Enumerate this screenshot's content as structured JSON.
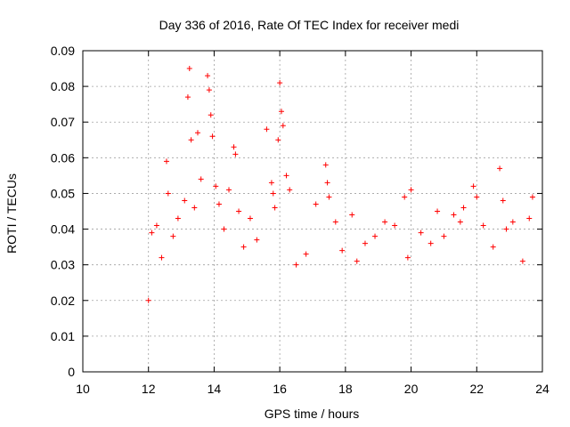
{
  "chart_data": {
    "type": "scatter",
    "title": "Day 336 of 2016, Rate Of TEC Index for receiver medi",
    "xlabel": "GPS time / hours",
    "ylabel": "ROTI / TECUs",
    "xlim": [
      10,
      24
    ],
    "ylim": [
      0,
      0.09
    ],
    "xticks": [
      "10",
      "12",
      "14",
      "16",
      "18",
      "20",
      "22",
      "24"
    ],
    "yticks": [
      "0",
      "0.01",
      "0.02",
      "0.03",
      "0.04",
      "0.05",
      "0.06",
      "0.07",
      "0.08",
      "0.09"
    ],
    "grid": true,
    "marker": "plus",
    "color": "#ff0000",
    "series": [
      {
        "name": "ROTI",
        "x": [
          12.0,
          12.1,
          12.25,
          12.4,
          12.55,
          12.6,
          12.75,
          12.9,
          13.1,
          13.2,
          13.25,
          13.3,
          13.4,
          13.5,
          13.6,
          13.8,
          13.85,
          13.9,
          13.95,
          14.05,
          14.15,
          14.3,
          14.45,
          14.6,
          14.65,
          14.75,
          14.9,
          15.1,
          15.3,
          15.6,
          15.75,
          15.8,
          15.85,
          15.95,
          16.0,
          16.05,
          16.1,
          16.2,
          16.3,
          16.5,
          16.8,
          17.1,
          17.4,
          17.45,
          17.5,
          17.7,
          17.9,
          18.2,
          18.35,
          18.6,
          18.9,
          19.2,
          19.5,
          19.8,
          19.9,
          20.0,
          20.3,
          20.6,
          20.8,
          21.0,
          21.3,
          21.5,
          21.6,
          21.9,
          22.0,
          22.2,
          22.5,
          22.7,
          22.8,
          22.9,
          23.1,
          23.4,
          23.6,
          23.7
        ],
        "y": [
          0.02,
          0.039,
          0.041,
          0.032,
          0.059,
          0.05,
          0.038,
          0.043,
          0.048,
          0.077,
          0.085,
          0.065,
          0.046,
          0.067,
          0.054,
          0.083,
          0.079,
          0.072,
          0.066,
          0.052,
          0.047,
          0.04,
          0.051,
          0.063,
          0.061,
          0.045,
          0.035,
          0.043,
          0.037,
          0.068,
          0.053,
          0.05,
          0.046,
          0.065,
          0.081,
          0.073,
          0.069,
          0.055,
          0.051,
          0.03,
          0.033,
          0.047,
          0.058,
          0.053,
          0.049,
          0.042,
          0.034,
          0.044,
          0.031,
          0.036,
          0.038,
          0.042,
          0.041,
          0.049,
          0.032,
          0.051,
          0.039,
          0.036,
          0.045,
          0.038,
          0.044,
          0.042,
          0.046,
          0.052,
          0.049,
          0.041,
          0.035,
          0.057,
          0.048,
          0.04,
          0.042,
          0.031,
          0.043,
          0.049
        ]
      }
    ]
  }
}
